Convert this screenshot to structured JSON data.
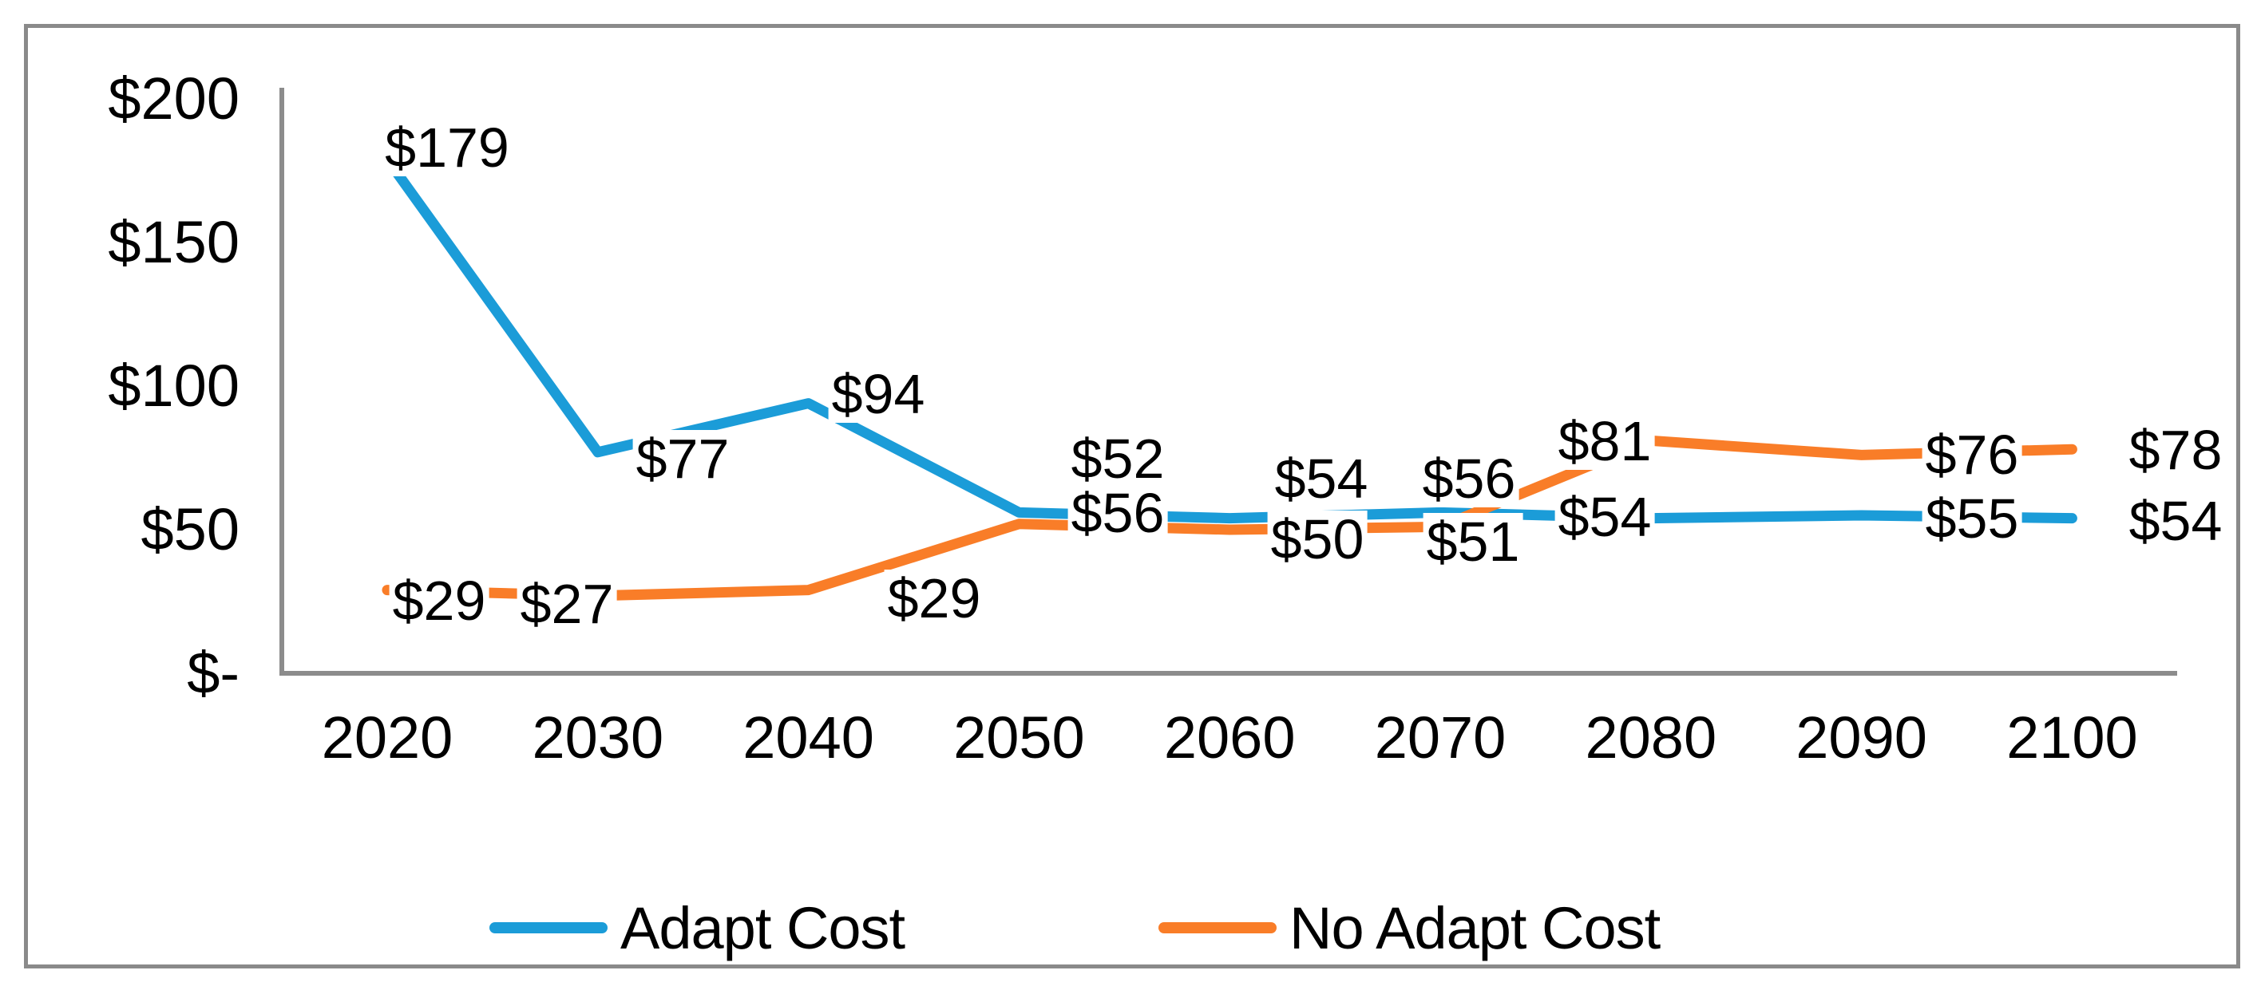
{
  "chart_data": {
    "type": "line",
    "title": "",
    "categories": [
      "2020",
      "2030",
      "2040",
      "2050",
      "2060",
      "2070",
      "2080",
      "2090",
      "2100"
    ],
    "series": [
      {
        "name": "Adapt Cost",
        "color": "#1b9cd8",
        "values": [
          179,
          77,
          94,
          56,
          54,
          56,
          54,
          55,
          54
        ],
        "labels": [
          "$179",
          "$77",
          "$94",
          "$56",
          "$54",
          "$56",
          "$54",
          "$55",
          "$54"
        ]
      },
      {
        "name": "No Adapt Cost",
        "color": "#f97d28",
        "values": [
          29,
          27,
          29,
          52,
          50,
          51,
          81,
          76,
          78
        ],
        "labels": [
          "$29",
          "$27",
          "$29",
          "$52",
          "$50",
          "$51",
          "$81",
          "$76",
          "$78"
        ]
      }
    ],
    "y_axis": {
      "tick_values": [
        200,
        150,
        100,
        50,
        0
      ],
      "tick_labels": [
        "$200",
        "$150",
        "$100",
        "$50",
        "$-"
      ],
      "range": [
        0,
        200
      ]
    },
    "x_axis": {
      "label": ""
    },
    "legend_position": "bottom",
    "grid": false,
    "axis_color": "#8c8c8c",
    "border_color": "#8a8a8a",
    "text_color": "#000000",
    "background": "#ffffff"
  }
}
